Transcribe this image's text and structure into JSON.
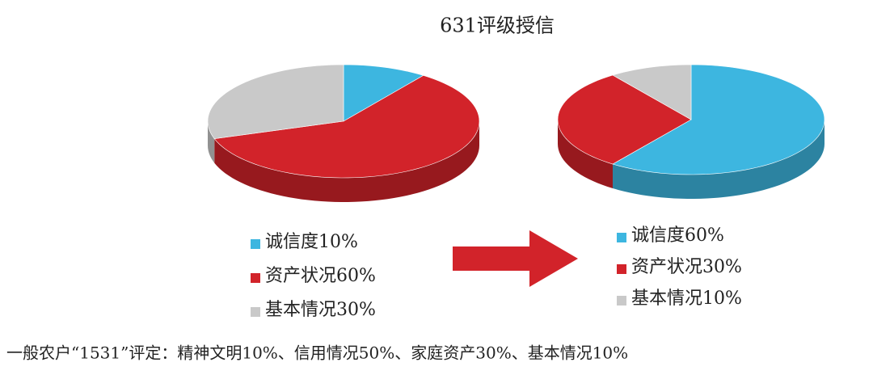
{
  "title": "631评级授信",
  "chart_data": [
    {
      "type": "pie",
      "categories": [
        "诚信度",
        "资产状况",
        "基本情况"
      ],
      "values": [
        10,
        60,
        30
      ],
      "value_labels": [
        "10%",
        "60%",
        "30%"
      ],
      "colors": [
        "#3db6e0",
        "#d2232a",
        "#c9c9c9"
      ]
    },
    {
      "type": "pie",
      "categories": [
        "诚信度",
        "资产状况",
        "基本情况"
      ],
      "values": [
        60,
        30,
        10
      ],
      "value_labels": [
        "60%",
        "30%",
        "10%"
      ],
      "colors": [
        "#3db6e0",
        "#d2232a",
        "#c9c9c9"
      ]
    }
  ],
  "caption": "一般农户“1531”评定：精神文明10%、信用情况50%、家庭资产30%、基本情况10%"
}
